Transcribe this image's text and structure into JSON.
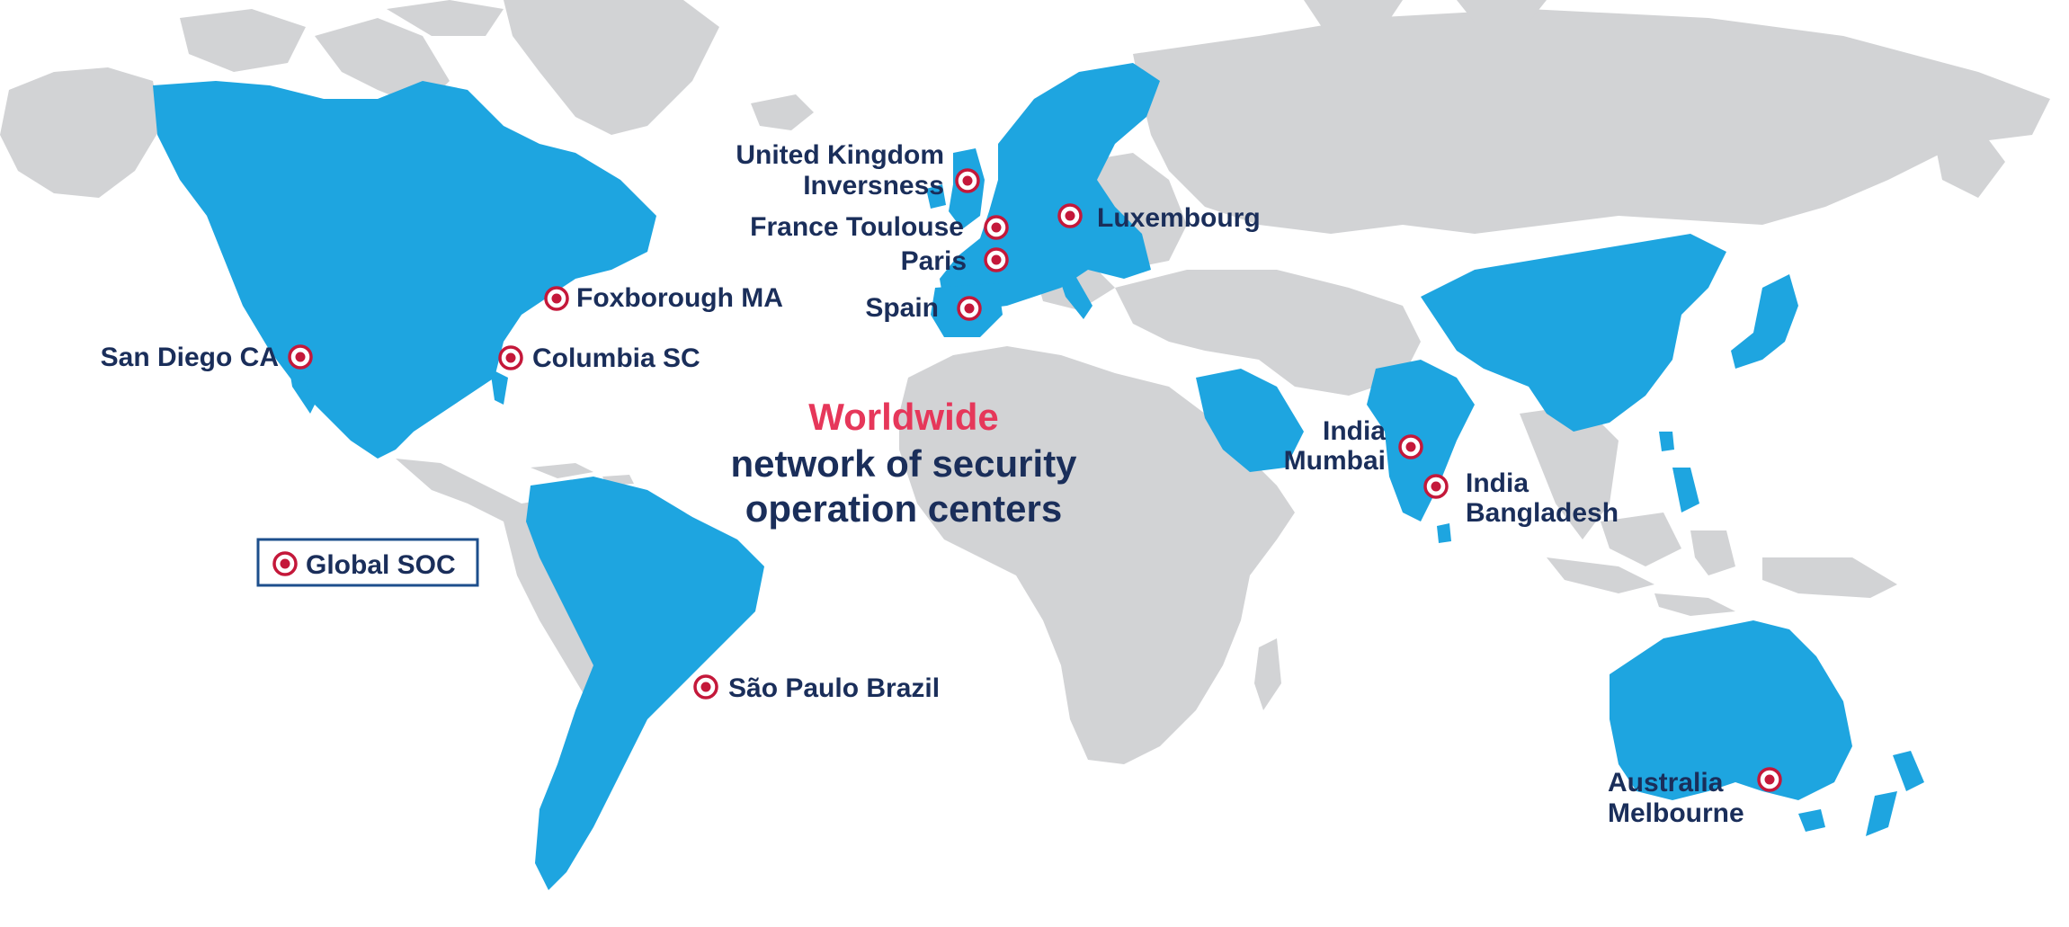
{
  "headline": {
    "accent": "Worldwide",
    "line2": "network of security",
    "line3": "operation centers"
  },
  "legend": {
    "label": "Global SOC",
    "icon": "soc-marker-icon"
  },
  "colors": {
    "highlighted_region": "#1ea5e0",
    "other_land": "#d2d3d5",
    "marker": "#c4183a",
    "label_text": "#1a2e5a",
    "accent_text": "#e6375a",
    "legend_border": "#1d4f8c"
  },
  "locations": [
    {
      "id": "san-diego",
      "label": "San Diego CA"
    },
    {
      "id": "foxborough",
      "label": "Foxborough MA"
    },
    {
      "id": "columbia",
      "label": "Columbia SC"
    },
    {
      "id": "sao-paulo",
      "label": "São Paulo Brazil"
    },
    {
      "id": "inverness",
      "label": "United Kingdom",
      "label2": "Inversness"
    },
    {
      "id": "toulouse",
      "label": "France Toulouse"
    },
    {
      "id": "paris",
      "label": "Paris"
    },
    {
      "id": "spain",
      "label": "Spain"
    },
    {
      "id": "luxembourg",
      "label": "Luxembourg"
    },
    {
      "id": "mumbai",
      "label": "India",
      "label2": "Mumbai"
    },
    {
      "id": "bangladesh",
      "label": "India",
      "label2": "Bangladesh"
    },
    {
      "id": "melbourne",
      "label": "Australia",
      "label2": "Melbourne"
    }
  ]
}
